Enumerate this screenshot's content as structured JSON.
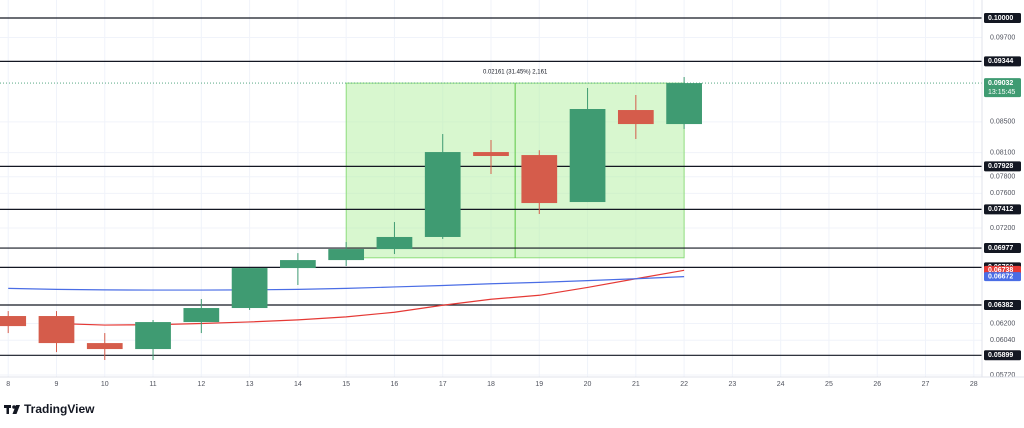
{
  "brand": "TradingView",
  "chart_data": {
    "type": "candlestick",
    "log_scale": true,
    "grid": true,
    "x": [
      8,
      9,
      10,
      11,
      12,
      13,
      14,
      15,
      16,
      17,
      18,
      19,
      20,
      21,
      22
    ],
    "open": [
      0.06273,
      0.06273,
      0.06013,
      0.05957,
      0.06214,
      0.06352,
      0.06762,
      0.06847,
      0.06966,
      0.07099,
      0.08108,
      0.0807,
      0.07498,
      0.08659,
      0.08471
    ],
    "high": [
      0.06322,
      0.06322,
      0.06108,
      0.06234,
      0.06442,
      0.06762,
      0.06922,
      0.07043,
      0.07267,
      0.0834,
      0.08262,
      0.08131,
      0.08963,
      0.08865,
      0.09118
    ],
    "low": [
      0.06108,
      0.05929,
      0.05856,
      0.05856,
      0.06108,
      0.06333,
      0.06585,
      0.06784,
      0.06912,
      0.07077,
      0.07834,
      0.07359,
      0.07498,
      0.08275,
      0.08406
    ],
    "close": [
      0.06175,
      0.06013,
      0.05957,
      0.06214,
      0.06352,
      0.06762,
      0.06847,
      0.06966,
      0.07099,
      0.08108,
      0.08058,
      0.07486,
      0.08673,
      0.08471,
      0.09032
    ],
    "up_color": "#3f9b72",
    "down_color": "#d55c4b",
    "countdown": "13:15:45",
    "lines": [
      {
        "color": "#e53935",
        "values": [
          null,
          0.062,
          0.06185,
          0.06188,
          0.062,
          0.06215,
          0.06235,
          0.06265,
          0.0631,
          0.0638,
          0.0644,
          0.0648,
          0.0656,
          0.0665,
          0.06738
        ]
      },
      {
        "color": "#4a6de5",
        "values": [
          0.0655,
          0.0654,
          0.06535,
          0.06533,
          0.06533,
          0.06535,
          0.0654,
          0.0655,
          0.06565,
          0.0658,
          0.06598,
          0.06612,
          0.0663,
          0.0665,
          0.06672
        ]
      }
    ],
    "levels": [
      {
        "value": 0.1,
        "label": "0.10000"
      },
      {
        "value": 0.09344,
        "label": "0.09344"
      },
      {
        "value": 0.07928,
        "label": "0.07928"
      },
      {
        "value": 0.07412,
        "label": "0.07412"
      },
      {
        "value": 0.06977,
        "label": "0.06977"
      },
      {
        "value": 0.06769,
        "label": "0.06769"
      },
      {
        "value": 0.06382,
        "label": "0.06382"
      },
      {
        "value": 0.05899,
        "label": "0.05899"
      }
    ],
    "measure": {
      "from_x": 15,
      "to_x": 22,
      "high": 0.09032,
      "low": 0.06871,
      "label": "0.02161 (31.45%) 2,161",
      "color": "#b8f0a8"
    },
    "xlim": [
      7.83,
      28.17
    ],
    "xticks": [
      8,
      9,
      10,
      11,
      12,
      13,
      14,
      15,
      16,
      17,
      18,
      19,
      20,
      21,
      22,
      23,
      24,
      25,
      26,
      27,
      28
    ],
    "ylim": [
      0.0572,
      0.10286
    ],
    "yticks": [
      {
        "value": 0.097,
        "label": "0.09700"
      },
      {
        "value": 0.085,
        "label": "0.08500"
      },
      {
        "value": 0.081,
        "label": "0.08100"
      },
      {
        "value": 0.078,
        "label": "0.07800"
      },
      {
        "value": 0.076,
        "label": "0.07600"
      },
      {
        "value": 0.072,
        "label": "0.07200"
      },
      {
        "value": 0.062,
        "label": "0.06200"
      },
      {
        "value": 0.0604,
        "label": "0.06040"
      },
      {
        "value": 0.0572,
        "label": "0.05720"
      }
    ]
  }
}
